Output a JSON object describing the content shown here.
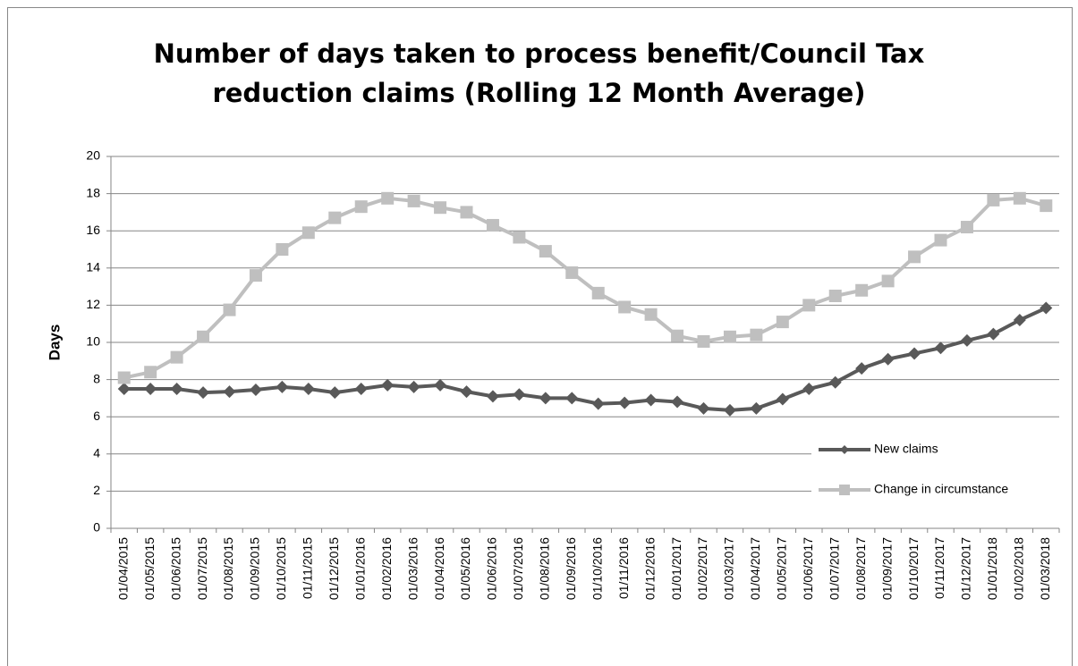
{
  "chart_data": {
    "type": "line",
    "title": "Number of days taken to process benefit/Council Tax reduction claims (Rolling 12 Month Average)",
    "y_label": "Days",
    "categories": [
      "01/04/2015",
      "01/05/2015",
      "01/06/2015",
      "01/07/2015",
      "01/08/2015",
      "01/09/2015",
      "01/10/2015",
      "01/11/2015",
      "01/12/2015",
      "01/01/2016",
      "01/02/2016",
      "01/03/2016",
      "01/04/2016",
      "01/05/2016",
      "01/06/2016",
      "01/07/2016",
      "01/08/2016",
      "01/09/2016",
      "01/10/2016",
      "01/11/2016",
      "01/12/2016",
      "01/01/2017",
      "01/02/2017",
      "01/03/2017",
      "01/04/2017",
      "01/05/2017",
      "01/06/2017",
      "01/07/2017",
      "01/08/2017",
      "01/09/2017",
      "01/10/2017",
      "01/11/2017",
      "01/12/2017",
      "01/01/2018",
      "01/02/2018",
      "01/03/2018"
    ],
    "series": [
      {
        "name": "New claims",
        "color": "#595959",
        "marker": "diamond",
        "values": [
          7.5,
          7.5,
          7.5,
          7.3,
          7.35,
          7.45,
          7.6,
          7.5,
          7.3,
          7.5,
          7.7,
          7.6,
          7.7,
          7.35,
          7.1,
          7.2,
          7.0,
          7.0,
          6.7,
          6.75,
          6.9,
          6.8,
          6.45,
          6.35,
          6.45,
          6.95,
          7.5,
          7.85,
          8.6,
          9.1,
          9.4,
          9.7,
          10.1,
          10.45,
          11.2,
          11.85
        ]
      },
      {
        "name": "Change in circumstance",
        "color": "#bfbfbf",
        "marker": "square",
        "values": [
          8.1,
          8.4,
          9.2,
          10.3,
          11.75,
          13.6,
          15.0,
          15.9,
          16.7,
          17.3,
          17.75,
          17.6,
          17.25,
          17.0,
          16.3,
          15.65,
          14.9,
          13.75,
          12.65,
          11.9,
          11.5,
          10.35,
          10.05,
          10.3,
          10.4,
          11.1,
          12.0,
          12.5,
          12.8,
          13.3,
          14.6,
          15.5,
          16.2,
          17.65,
          17.75,
          17.35
        ]
      }
    ],
    "ylim": [
      0,
      20
    ],
    "yticks": [
      0,
      2,
      4,
      6,
      8,
      10,
      12,
      14,
      16,
      18,
      20
    ],
    "grid": true,
    "legend": "lower right"
  }
}
